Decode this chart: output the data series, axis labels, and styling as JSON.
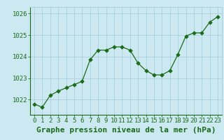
{
  "x": [
    0,
    1,
    2,
    3,
    4,
    5,
    6,
    7,
    8,
    9,
    10,
    11,
    12,
    13,
    14,
    15,
    16,
    17,
    18,
    19,
    20,
    21,
    22,
    23
  ],
  "y": [
    1021.8,
    1021.65,
    1022.2,
    1022.4,
    1022.55,
    1022.7,
    1022.85,
    1023.85,
    1024.3,
    1024.3,
    1024.45,
    1024.45,
    1024.3,
    1023.7,
    1023.35,
    1023.15,
    1023.15,
    1023.35,
    1024.1,
    1024.95,
    1025.1,
    1025.1,
    1025.6,
    1025.85
  ],
  "line_color": "#1a6b1a",
  "marker_color": "#1a6b1a",
  "background_color": "#cce8f0",
  "grid_color": "#aacfdf",
  "xlabel": "Graphe pression niveau de la mer (hPa)",
  "xlabel_color": "#1a6b1a",
  "ylabel_ticks": [
    1022,
    1023,
    1024,
    1025,
    1026
  ],
  "ylim": [
    1021.3,
    1026.3
  ],
  "xlim": [
    -0.5,
    23.5
  ],
  "xtick_labels": [
    "0",
    "1",
    "2",
    "3",
    "4",
    "5",
    "6",
    "7",
    "8",
    "9",
    "10",
    "11",
    "12",
    "13",
    "14",
    "15",
    "16",
    "17",
    "18",
    "19",
    "20",
    "21",
    "22",
    "23"
  ],
  "tick_fontsize": 6.5,
  "xlabel_fontsize": 8.0
}
